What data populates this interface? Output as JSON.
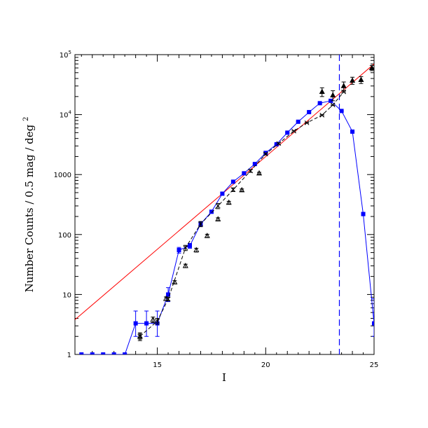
{
  "chart_data": {
    "type": "scatter",
    "title": "",
    "xlabel": "I",
    "ylabel": "Number Counts / 0.5 mag / deg",
    "ylabel_sup": "2",
    "xscale": "linear",
    "yscale": "log",
    "xlim": [
      11.2,
      25
    ],
    "ylim": [
      1,
      100000
    ],
    "grid": false,
    "legend": "none",
    "x_ticks": [
      {
        "value": 15,
        "label": "15"
      },
      {
        "value": 20,
        "label": "20"
      },
      {
        "value": 25,
        "label": "25"
      }
    ],
    "y_ticks": [
      {
        "value": 1,
        "label": "1",
        "sup": ""
      },
      {
        "value": 10,
        "label": "10",
        "sup": ""
      },
      {
        "value": 100,
        "label": "100",
        "sup": ""
      },
      {
        "value": 1000,
        "label": "1000",
        "sup": ""
      },
      {
        "value": 10000,
        "label": "10",
        "sup": "4"
      },
      {
        "value": 100000,
        "label": "10",
        "sup": "5"
      }
    ],
    "vertical_line": {
      "x": 23.4,
      "color": "#0000ff",
      "style": "dashed"
    },
    "series": [
      {
        "id": "model",
        "style": "line",
        "color": "#ff0000",
        "x": [
          11.2,
          25
        ],
        "y": [
          3.8,
          70000
        ]
      },
      {
        "id": "blue-squares",
        "style": "line-markers",
        "marker": "square",
        "color": "#0000ff",
        "x": [
          11.5,
          12.0,
          12.5,
          13.0,
          13.5,
          14.0,
          14.5,
          15.0,
          15.5,
          16.0,
          16.5,
          17.0,
          17.5,
          18.0,
          18.5,
          19.0,
          19.5,
          20.0,
          20.5,
          21.0,
          21.5,
          22.0,
          22.5,
          23.0,
          23.5,
          24.0,
          24.5,
          25.0
        ],
        "y": [
          1,
          1,
          1,
          1,
          1,
          3.3,
          3.3,
          3.3,
          10,
          55,
          65,
          150,
          240,
          480,
          760,
          1050,
          1500,
          2300,
          3200,
          5000,
          7600,
          11000,
          15500,
          17000,
          11500,
          5200,
          220,
          3.3
        ],
        "err_low": [
          0,
          0,
          0,
          0,
          0,
          1.3,
          1.3,
          1.3,
          2.4,
          6,
          6,
          12,
          15,
          20,
          25,
          30,
          35,
          45,
          55,
          70,
          85,
          100,
          120,
          130,
          110,
          70,
          15,
          1.3
        ],
        "err_high": [
          0,
          0,
          0,
          0,
          0,
          2.0,
          2.0,
          2.0,
          3.0,
          6,
          6,
          12,
          15,
          20,
          25,
          30,
          35,
          45,
          55,
          70,
          85,
          100,
          120,
          130,
          110,
          70,
          15,
          5.2
        ]
      },
      {
        "id": "crosses-dashed",
        "style": "dashed-markers",
        "marker": "cross",
        "color": "#000000",
        "x": [
          14.2,
          15.0,
          15.5,
          16.3,
          17.0,
          17.8,
          18.5,
          19.3,
          20.0,
          20.6,
          21.3,
          21.9,
          22.6,
          23.1,
          23.6
        ],
        "y": [
          2.0,
          3.6,
          8.4,
          60,
          150,
          300,
          560,
          1150,
          2200,
          3300,
          5300,
          7300,
          9800,
          14500,
          24000
        ],
        "err_low": [
          0.3,
          0.4,
          0.6,
          6,
          15,
          30,
          40,
          60,
          80,
          100,
          130,
          150,
          200,
          300,
          600
        ],
        "err_high": [
          0.3,
          0.4,
          0.6,
          6,
          15,
          30,
          40,
          60,
          80,
          100,
          130,
          150,
          200,
          300,
          600
        ]
      },
      {
        "id": "triangles",
        "style": "markers",
        "marker": "triangle",
        "color": "#000000",
        "x": [
          14.2,
          14.8,
          15.4,
          15.8,
          16.3,
          16.8,
          17.3,
          17.8,
          18.3,
          18.9,
          19.7,
          22.6,
          23.1,
          23.6,
          24.0,
          24.4,
          24.9
        ],
        "y": [
          2.0,
          3.8,
          8.5,
          16,
          30,
          55,
          95,
          180,
          340,
          550,
          1050,
          24000,
          21000,
          30000,
          37000,
          38000,
          60000
        ],
        "err_low": [
          0.2,
          0.4,
          0.6,
          1,
          2,
          4,
          6,
          10,
          18,
          25,
          40,
          4000,
          4000,
          5000,
          5000,
          5000,
          6000
        ],
        "err_high": [
          0.2,
          0.4,
          0.6,
          1,
          2,
          4,
          6,
          10,
          18,
          25,
          40,
          4000,
          4000,
          5000,
          5000,
          5000,
          6000
        ]
      }
    ]
  }
}
